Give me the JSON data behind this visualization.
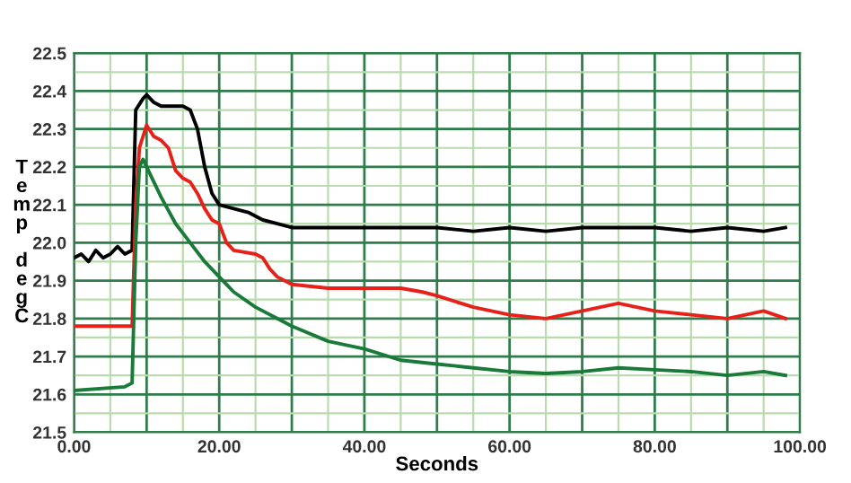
{
  "chart_data": {
    "type": "line",
    "xlabel": "Seconds",
    "ylabel": "Temp degC",
    "xlim": [
      0,
      100
    ],
    "ylim": [
      21.5,
      22.5
    ],
    "xticks": [
      {
        "value": 0,
        "label": "0.00"
      },
      {
        "value": 5,
        "label": null
      },
      {
        "value": 10,
        "label": null
      },
      {
        "value": 15,
        "label": null
      },
      {
        "value": 20,
        "label": "20.00"
      },
      {
        "value": 25,
        "label": null
      },
      {
        "value": 30,
        "label": null
      },
      {
        "value": 35,
        "label": null
      },
      {
        "value": 40,
        "label": "40.00"
      },
      {
        "value": 45,
        "label": null
      },
      {
        "value": 50,
        "label": null
      },
      {
        "value": 55,
        "label": null
      },
      {
        "value": 60,
        "label": "60.00"
      },
      {
        "value": 65,
        "label": null
      },
      {
        "value": 70,
        "label": null
      },
      {
        "value": 75,
        "label": null
      },
      {
        "value": 80,
        "label": "80.00"
      },
      {
        "value": 85,
        "label": null
      },
      {
        "value": 90,
        "label": null
      },
      {
        "value": 95,
        "label": null
      },
      {
        "value": 100,
        "label": "100.00"
      }
    ],
    "yticks": [
      21.5,
      {
        "value": 21.55,
        "label": null
      },
      21.6,
      {
        "value": 21.65,
        "label": null
      },
      21.7,
      {
        "value": 21.75,
        "label": null
      },
      21.8,
      {
        "value": 21.85,
        "label": null
      },
      21.9,
      {
        "value": 21.95,
        "label": null
      },
      {
        "value": 22.0,
        "label": "22.0"
      },
      {
        "value": 22.05,
        "label": null
      },
      22.1,
      {
        "value": 22.15,
        "label": null
      },
      22.2,
      {
        "value": 22.25,
        "label": null
      },
      22.3,
      {
        "value": 22.35,
        "label": null
      },
      22.4,
      {
        "value": 22.45,
        "label": null
      },
      22.5
    ],
    "grid": true,
    "marker": "none",
    "line_style": "solid",
    "series": [
      {
        "color": "#000000",
        "x": [
          0,
          1,
          2,
          3,
          4,
          5,
          6,
          7,
          8,
          8.5,
          9.5,
          10,
          11,
          12,
          15,
          16,
          17,
          18,
          19,
          20,
          22,
          24,
          26,
          28,
          30,
          40,
          50,
          55,
          60,
          65,
          70,
          75,
          80,
          85,
          90,
          95,
          98
        ],
        "values": [
          21.96,
          21.97,
          21.95,
          21.98,
          21.96,
          21.97,
          21.99,
          21.97,
          21.98,
          22.35,
          22.38,
          22.39,
          22.37,
          22.36,
          22.36,
          22.35,
          22.3,
          22.2,
          22.13,
          22.1,
          22.09,
          22.08,
          22.06,
          22.05,
          22.04,
          22.04,
          22.04,
          22.03,
          22.04,
          22.03,
          22.04,
          22.04,
          22.04,
          22.03,
          22.04,
          22.03,
          22.04
        ]
      },
      {
        "color": "#e8201a",
        "x": [
          0,
          8,
          8.5,
          9,
          10,
          11,
          12,
          13,
          14,
          15,
          16,
          17,
          18,
          19,
          20,
          21,
          22,
          25,
          26,
          27,
          28,
          30,
          35,
          45,
          48,
          50,
          55,
          60,
          65,
          70,
          75,
          80,
          85,
          90,
          95,
          98
        ],
        "values": [
          21.78,
          21.78,
          22.1,
          22.25,
          22.31,
          22.28,
          22.27,
          22.25,
          22.19,
          22.17,
          22.16,
          22.13,
          22.09,
          22.06,
          22.05,
          22.0,
          21.98,
          21.97,
          21.96,
          21.93,
          21.91,
          21.89,
          21.88,
          21.88,
          21.87,
          21.86,
          21.83,
          21.81,
          21.8,
          21.82,
          21.84,
          21.82,
          21.81,
          21.8,
          21.82,
          21.8
        ]
      },
      {
        "color": "#1a7a3a",
        "x": [
          0,
          7,
          8,
          8.5,
          9,
          9.5,
          10,
          12,
          14,
          16,
          18,
          20,
          22,
          25,
          28,
          30,
          35,
          40,
          45,
          50,
          55,
          60,
          65,
          70,
          75,
          80,
          85,
          90,
          95,
          98
        ],
        "values": [
          21.61,
          21.62,
          21.63,
          22.0,
          22.2,
          22.22,
          22.2,
          22.12,
          22.05,
          22.0,
          21.95,
          21.91,
          21.87,
          21.83,
          21.8,
          21.78,
          21.74,
          21.72,
          21.69,
          21.68,
          21.67,
          21.66,
          21.655,
          21.66,
          21.67,
          21.665,
          21.66,
          21.65,
          21.66,
          21.65
        ]
      }
    ]
  }
}
